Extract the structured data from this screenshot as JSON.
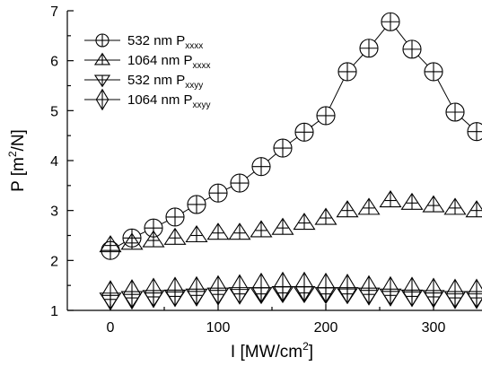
{
  "chart_data": {
    "type": "scatter",
    "xlabel": "I [MW/cm",
    "xlabel_sup": "2",
    "xlabel_tail": "]",
    "ylabel": "P [m",
    "ylabel_sup": "2",
    "ylabel_tail": "/N]",
    "xlim": [
      -40,
      345
    ],
    "ylim": [
      1,
      7
    ],
    "xticks": [
      0,
      100,
      200,
      300
    ],
    "yticks": [
      1,
      2,
      3,
      4,
      5,
      6,
      7
    ],
    "grid": false,
    "legend_position": "top-left",
    "series": [
      {
        "name": "532 nm P",
        "sub": "xxxx",
        "marker": "circle-plus",
        "connected": true,
        "x": [
          0,
          20,
          40,
          60,
          80,
          100,
          120,
          140,
          160,
          180,
          200,
          220,
          240,
          260,
          280,
          300,
          320,
          340
        ],
        "y": [
          2.2,
          2.45,
          2.65,
          2.87,
          3.12,
          3.35,
          3.55,
          3.88,
          4.25,
          4.57,
          4.9,
          5.78,
          6.25,
          6.78,
          6.23,
          5.78,
          4.97,
          4.58
        ]
      },
      {
        "name": "1064 nm P",
        "sub": "xxxx",
        "marker": "triangle-up",
        "connected": false,
        "x": [
          0,
          20,
          40,
          60,
          80,
          100,
          120,
          140,
          160,
          180,
          200,
          220,
          240,
          260,
          280,
          300,
          320,
          340
        ],
        "y": [
          2.3,
          2.35,
          2.4,
          2.45,
          2.5,
          2.55,
          2.55,
          2.6,
          2.65,
          2.75,
          2.85,
          3.0,
          3.05,
          3.2,
          3.15,
          3.1,
          3.05,
          3.0
        ]
      },
      {
        "name": "532 nm P",
        "sub": "xxyy",
        "marker": "triangle-down",
        "connected": false,
        "x": [
          0,
          20,
          40,
          60,
          80,
          100,
          120,
          140,
          160,
          180,
          200,
          220,
          240,
          260,
          280,
          300,
          320,
          340
        ],
        "y": [
          1.22,
          1.25,
          1.27,
          1.28,
          1.3,
          1.32,
          1.33,
          1.33,
          1.35,
          1.35,
          1.33,
          1.33,
          1.32,
          1.3,
          1.28,
          1.27,
          1.25,
          1.25
        ]
      },
      {
        "name": "1064 nm P",
        "sub": "xxyy",
        "marker": "diamond-plus",
        "connected": false,
        "x": [
          0,
          20,
          40,
          60,
          80,
          100,
          120,
          140,
          160,
          180,
          200,
          220,
          240,
          260,
          280,
          300,
          320,
          340
        ],
        "y": [
          1.3,
          1.32,
          1.35,
          1.37,
          1.38,
          1.4,
          1.42,
          1.45,
          1.47,
          1.47,
          1.45,
          1.43,
          1.4,
          1.38,
          1.37,
          1.35,
          1.33,
          1.33
        ]
      }
    ]
  }
}
